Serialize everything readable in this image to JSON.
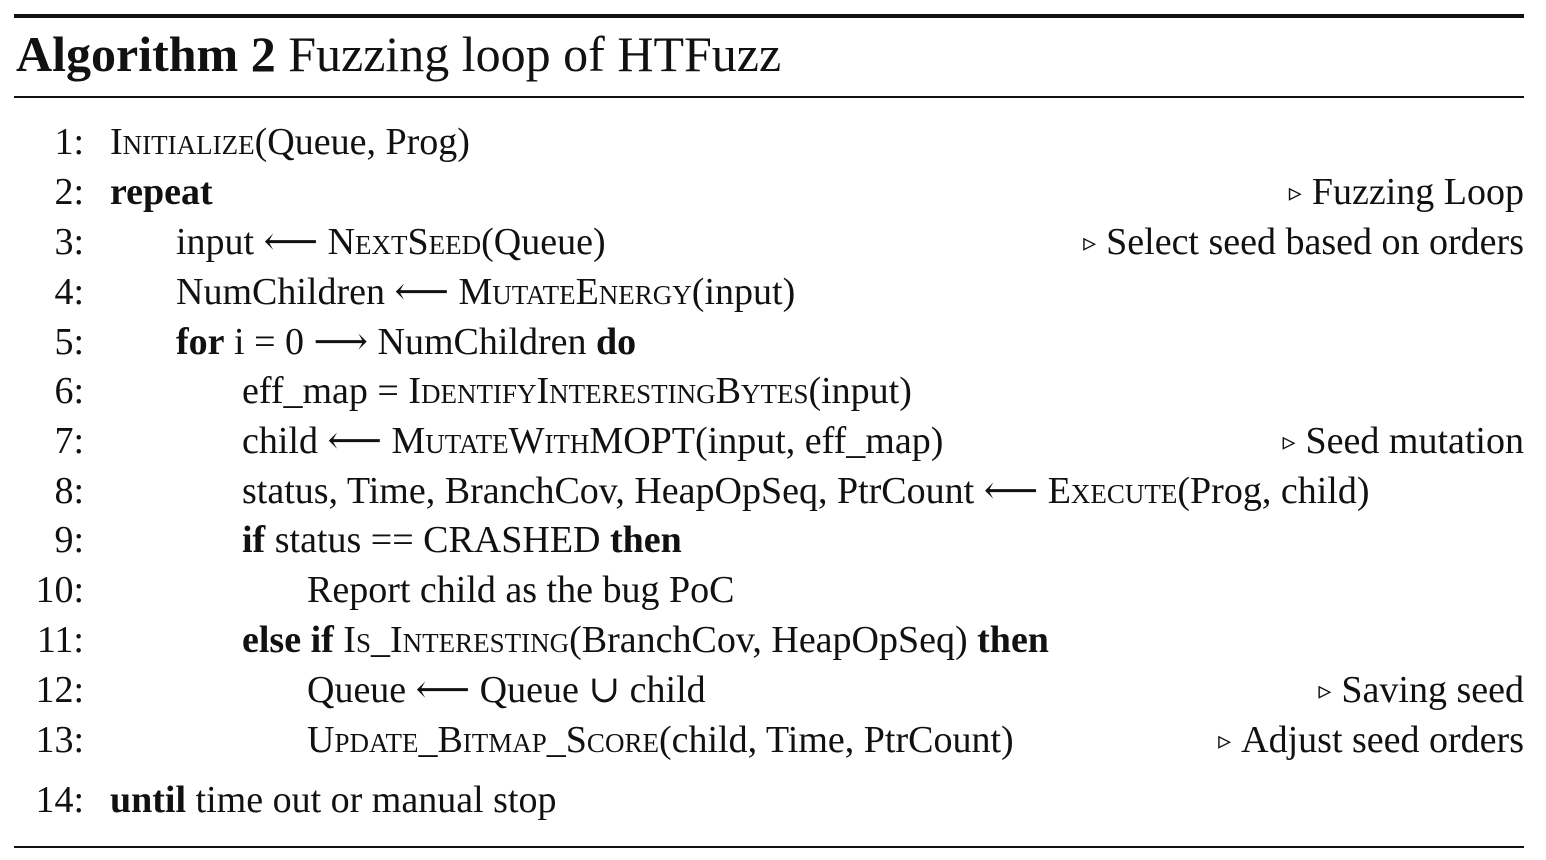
{
  "caption": {
    "label": "Algorithm 2",
    "title": "Fuzzing loop of HTFuzz"
  },
  "comment_marker": "▹",
  "lines": [
    {
      "no": "1:",
      "segments": [
        {
          "t": "Initialize",
          "s": "sc"
        },
        {
          "t": "(Queue, Prog)"
        }
      ]
    },
    {
      "no": "2:",
      "segments": [
        {
          "t": "repeat",
          "s": "kw"
        }
      ],
      "comment": "Fuzzing Loop"
    },
    {
      "no": "3:",
      "segments": [
        {
          "t": "input ⟵ "
        },
        {
          "t": "NextSeed",
          "s": "sc"
        },
        {
          "t": "(Queue)"
        }
      ],
      "comment": "Select seed based on orders"
    },
    {
      "no": "4:",
      "segments": [
        {
          "t": "NumChildren ⟵ "
        },
        {
          "t": "MutateEnergy",
          "s": "sc"
        },
        {
          "t": "(input)"
        }
      ]
    },
    {
      "no": "5:",
      "segments": [
        {
          "t": "for",
          "s": "kw"
        },
        {
          "t": " i = 0 ⟶ NumChildren "
        },
        {
          "t": "do",
          "s": "kw"
        }
      ]
    },
    {
      "no": "6:",
      "segments": [
        {
          "t": "eff_map = "
        },
        {
          "t": "IdentifyInterestingBytes",
          "s": "sc"
        },
        {
          "t": "(input)"
        }
      ]
    },
    {
      "no": "7:",
      "segments": [
        {
          "t": "child ⟵ "
        },
        {
          "t": "MutateWithMOPT",
          "s": "sc"
        },
        {
          "t": "(input, eff_map)"
        }
      ],
      "comment": "Seed mutation"
    },
    {
      "no": "8:",
      "segments": [
        {
          "t": "status, Time, BranchCov, HeapOpSeq, PtrCount ⟵ "
        },
        {
          "t": "Execute",
          "s": "sc"
        },
        {
          "t": "(Prog, child)"
        }
      ]
    },
    {
      "no": "9:",
      "segments": [
        {
          "t": "if",
          "s": "kw"
        },
        {
          "t": " status == CRASHED "
        },
        {
          "t": "then",
          "s": "kw"
        }
      ]
    },
    {
      "no": "10:",
      "segments": [
        {
          "t": "Report child as the bug PoC"
        }
      ]
    },
    {
      "no": "11:",
      "segments": [
        {
          "t": "else if",
          "s": "kw"
        },
        {
          "t": " "
        },
        {
          "t": "Is_Interesting",
          "s": "sc"
        },
        {
          "t": "(BranchCov, HeapOpSeq) "
        },
        {
          "t": "then",
          "s": "kw"
        }
      ]
    },
    {
      "no": "12:",
      "segments": [
        {
          "t": "Queue ⟵ Queue ∪ child"
        }
      ],
      "comment": "Saving seed"
    },
    {
      "no": "13:",
      "segments": [
        {
          "t": "Update_Bitmap_Score",
          "s": "sc"
        },
        {
          "t": "(child, Time, PtrCount)"
        }
      ],
      "comment": "Adjust seed orders"
    },
    {
      "no": "14:",
      "segments": [
        {
          "t": "until",
          "s": "kw"
        },
        {
          "t": " time out or manual stop"
        }
      ]
    }
  ]
}
